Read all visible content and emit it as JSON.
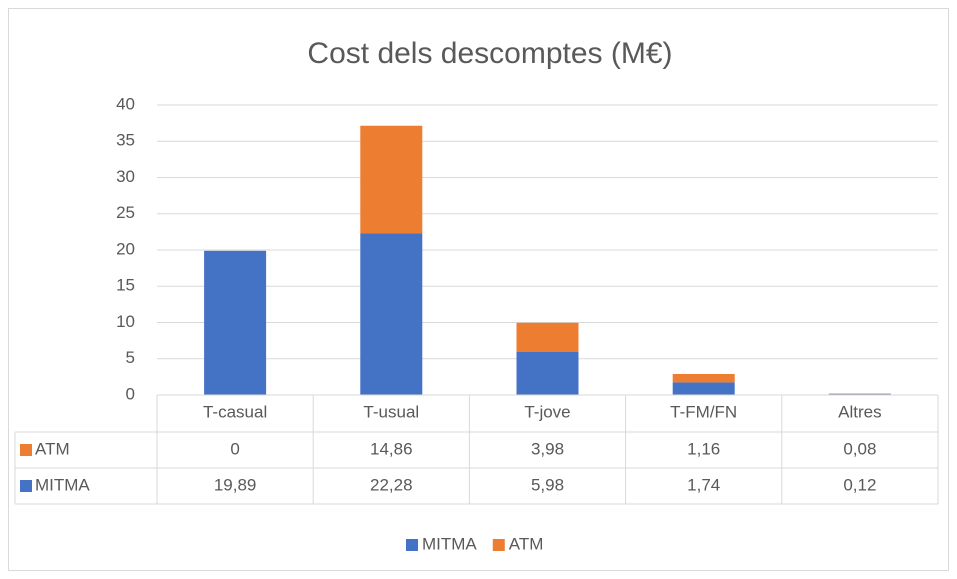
{
  "chart_data": {
    "type": "bar",
    "stacked": true,
    "title": "Cost dels descomptes (M€)",
    "categories": [
      "T-casual",
      "T-usual",
      "T-jove",
      "T-FM/FN",
      "Altres"
    ],
    "series": [
      {
        "name": "MITMA",
        "color": "#4472c4",
        "values": [
          19.89,
          22.28,
          5.98,
          1.74,
          0.12
        ],
        "value_labels": [
          "19,89",
          "22,28",
          "5,98",
          "1,74",
          "0,12"
        ]
      },
      {
        "name": "ATM",
        "color": "#ed7d31",
        "values": [
          0,
          14.86,
          3.98,
          1.16,
          0.08
        ],
        "value_labels": [
          "0",
          "14,86",
          "3,98",
          "1,16",
          "0,08"
        ]
      }
    ],
    "ylim": [
      0,
      40
    ],
    "yticks": [
      0,
      5,
      10,
      15,
      20,
      25,
      30,
      35,
      40
    ],
    "grid": true,
    "data_table": true,
    "legend": "bottom"
  }
}
